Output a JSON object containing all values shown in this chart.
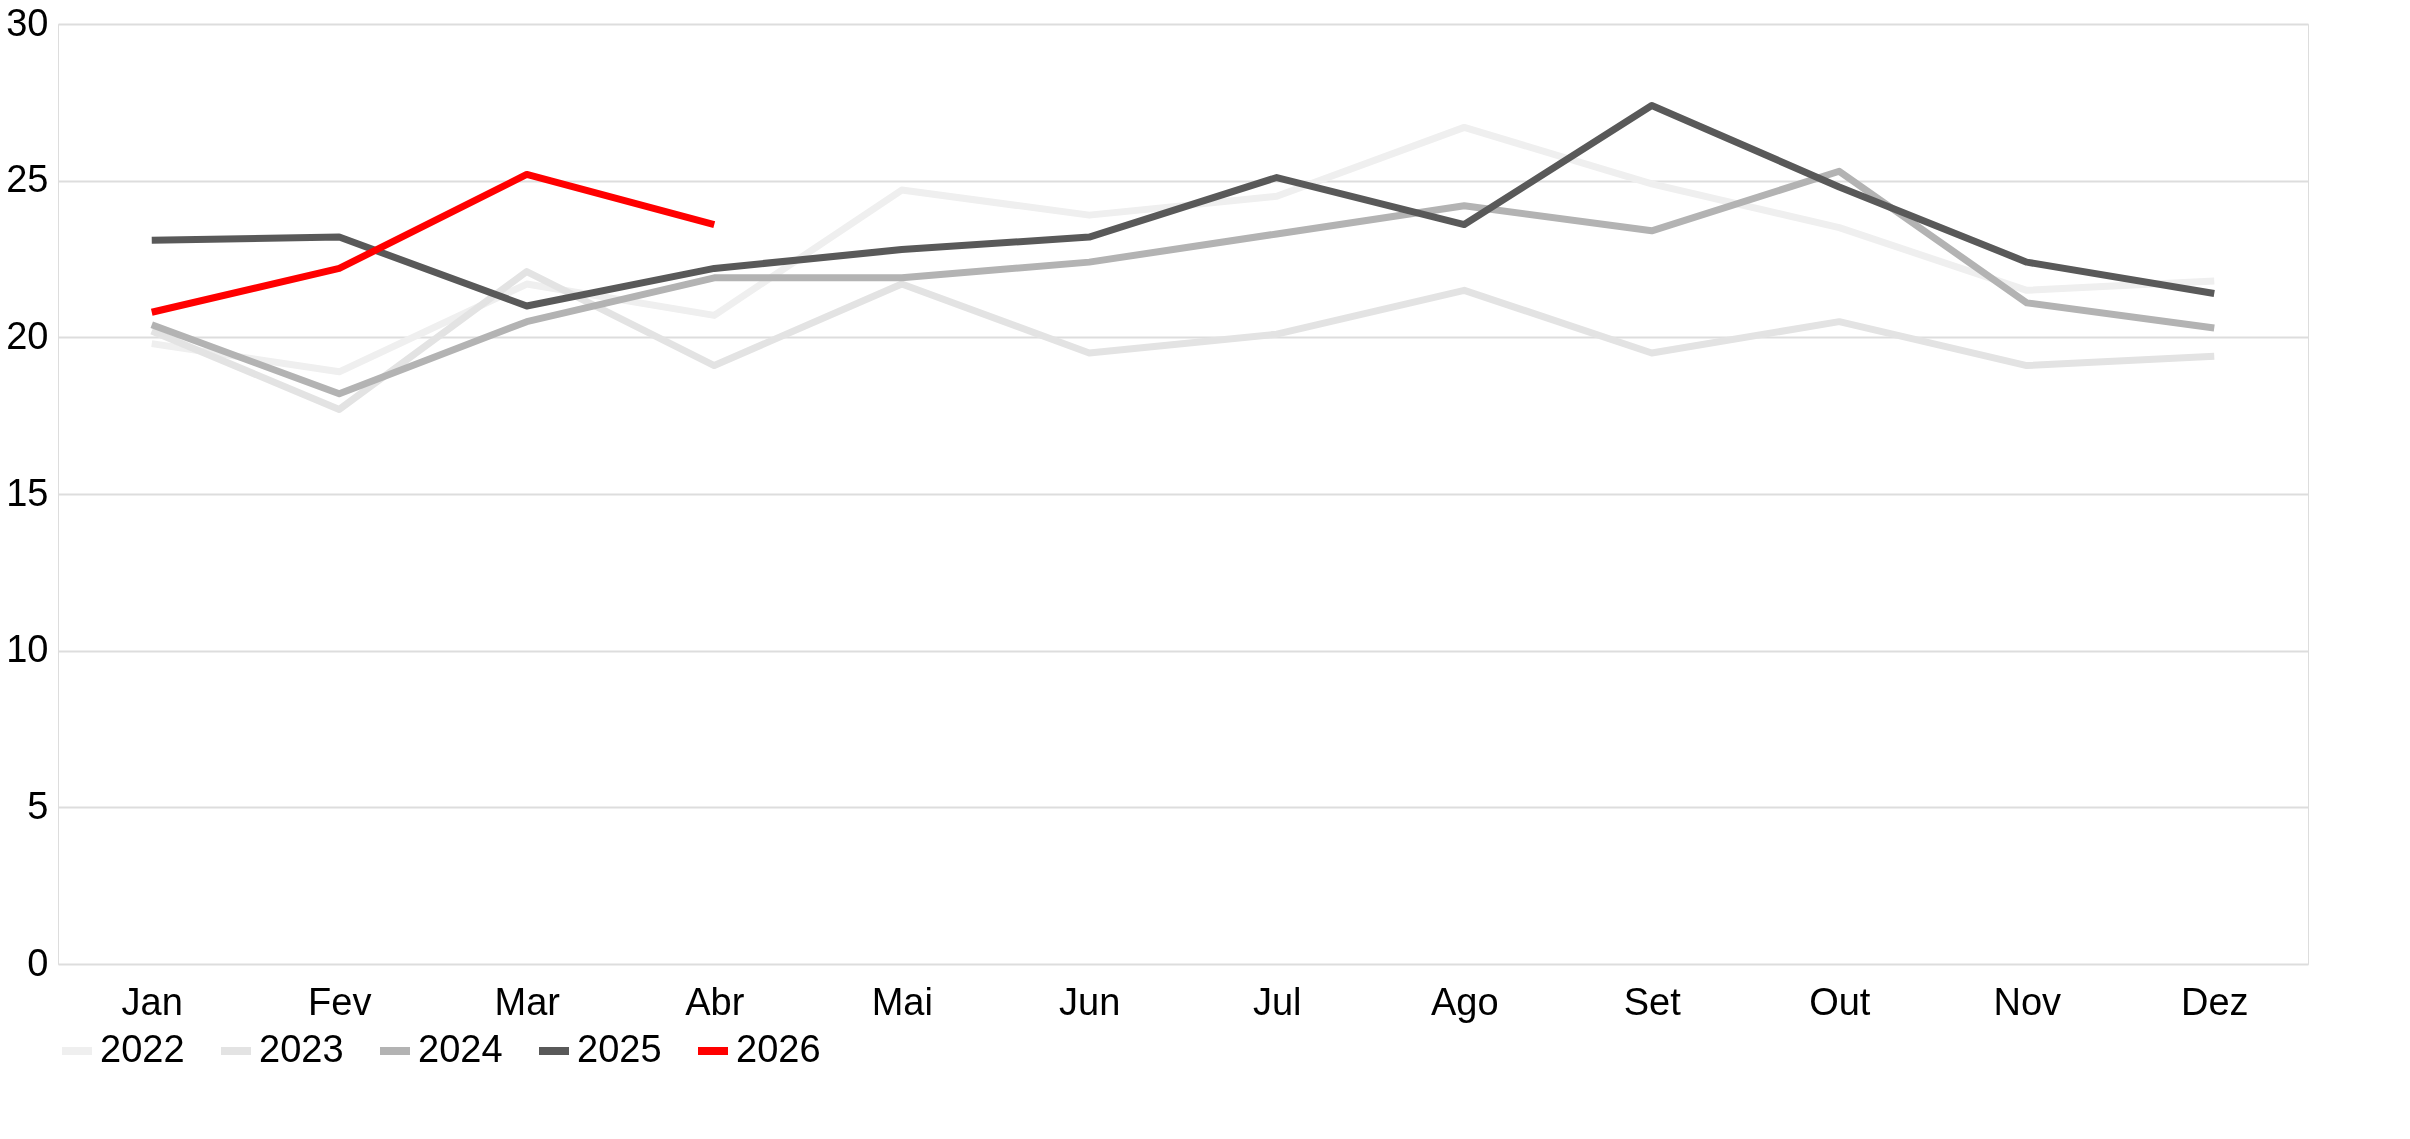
{
  "chart_data": {
    "type": "line",
    "categories": [
      "Jan",
      "Fev",
      "Mar",
      "Abr",
      "Mai",
      "Jun",
      "Jul",
      "Ago",
      "Set",
      "Out",
      "Nov",
      "Dez"
    ],
    "series": [
      {
        "name": "2022",
        "color": "#efefef",
        "values": [
          19.8,
          18.9,
          21.7,
          20.7,
          24.7,
          23.9,
          24.5,
          26.7,
          24.9,
          23.5,
          21.5,
          21.8
        ]
      },
      {
        "name": "2023",
        "color": "#e3e3e3",
        "values": [
          20.2,
          17.7,
          22.1,
          19.1,
          21.7,
          19.5,
          20.1,
          21.5,
          19.5,
          20.5,
          19.1,
          19.4
        ]
      },
      {
        "name": "2024",
        "color": "#b3b3b3",
        "values": [
          20.4,
          18.2,
          20.5,
          21.9,
          21.9,
          22.4,
          23.3,
          24.2,
          23.4,
          25.3,
          21.1,
          20.3
        ]
      },
      {
        "name": "2025",
        "color": "#595959",
        "values": [
          23.1,
          23.2,
          21.0,
          22.2,
          22.8,
          23.2,
          25.1,
          23.6,
          27.4,
          24.8,
          22.4,
          21.4
        ]
      },
      {
        "name": "2026",
        "color": "#ff0000",
        "values": [
          20.8,
          22.2,
          25.2,
          23.6,
          null,
          null,
          null,
          null,
          null,
          null,
          null,
          null
        ]
      }
    ],
    "ylim": [
      0,
      30
    ],
    "yticks": [
      0,
      5,
      10,
      15,
      20,
      25,
      30
    ],
    "grid": "y",
    "legend": "bottom left",
    "line_style": "solid"
  }
}
